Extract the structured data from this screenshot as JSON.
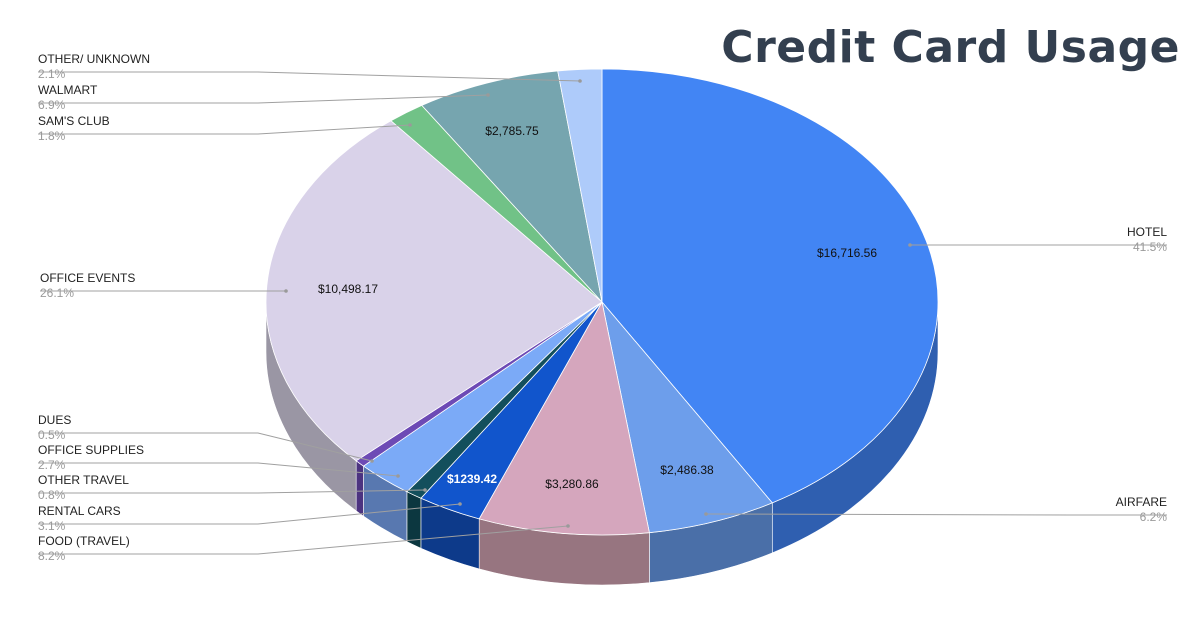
{
  "chart_data": {
    "type": "pie",
    "title": "Credit Card Usage",
    "slices": [
      {
        "name": "HOTEL",
        "pct": "41.5%",
        "value": 41.5,
        "amount": "$16,716.56",
        "color": "#4285f4",
        "side": "#2f5fb0"
      },
      {
        "name": "AIRFARE",
        "pct": "6.2%",
        "value": 6.2,
        "amount": "$2,486.38",
        "color": "#6d9eeb",
        "side": "#4a6fa8"
      },
      {
        "name": "FOOD (TRAVEL)",
        "pct": "8.2%",
        "value": 8.2,
        "amount": "$3,280.86",
        "color": "#d5a6bd",
        "side": "#977580"
      },
      {
        "name": "RENTAL CARS",
        "pct": "3.1%",
        "value": 3.1,
        "amount": "$1239.42",
        "color": "#1155cc",
        "side": "#0d3a8a"
      },
      {
        "name": "OTHER TRAVEL",
        "pct": "0.8%",
        "value": 0.8,
        "amount": "",
        "color": "#134f5c",
        "side": "#0c3740"
      },
      {
        "name": "OFFICE SUPPLIES",
        "pct": "2.7%",
        "value": 2.7,
        "amount": "",
        "color": "#7baaf7",
        "side": "#5878b0"
      },
      {
        "name": "DUES",
        "pct": "0.5%",
        "value": 0.5,
        "amount": "",
        "color": "#6d4ab5",
        "side": "#4c3380"
      },
      {
        "name": "OFFICE EVENTS",
        "pct": "26.1%",
        "value": 26.1,
        "amount": "$10,498.17",
        "color": "#d9d2e9",
        "side": "#9a96a4"
      },
      {
        "name": "SAM'S CLUB",
        "pct": "1.8%",
        "value": 1.8,
        "amount": "",
        "color": "#71c287",
        "side": "#4f8a60"
      },
      {
        "name": "WALMART",
        "pct": "6.9%",
        "value": 6.9,
        "amount": "$2,785.75",
        "color": "#76a5af",
        "side": "#53757c"
      },
      {
        "name": "OTHER/ UNKNOWN",
        "pct": "2.1%",
        "value": 2.1,
        "amount": "",
        "color": "#aecbfa",
        "side": "#7c91b3"
      }
    ]
  }
}
